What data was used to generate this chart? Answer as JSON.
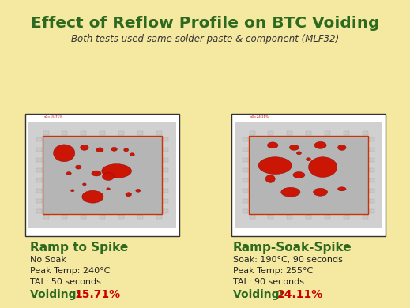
{
  "title": "Effect of Reflow Profile on BTC Voiding",
  "subtitle": "Both tests used same solder paste & component (MLF32)",
  "title_color": "#2d6a1f",
  "subtitle_color": "#333333",
  "background_color": "#f5e8a0",
  "left_heading": "Ramp to Spike",
  "left_details": [
    "No Soak",
    "Peak Temp: 240°C",
    "TAL: 50 seconds"
  ],
  "left_voiding_label": "Voiding: ",
  "left_voiding_value": "15.71%",
  "right_heading": "Ramp-Soak-Spike",
  "right_details": [
    "Soak: 190°C, 90 seconds",
    "Peak Temp: 255°C",
    "TAL: 90 seconds"
  ],
  "right_voiding_label": "Voiding: ",
  "right_voiding_value": "24.11%",
  "heading_color": "#2d6a1f",
  "detail_color": "#222222",
  "voiding_label_color": "#2d6a1f",
  "voiding_value_color": "#cc0000",
  "void_color": "#cc1100",
  "pcb_bg": "#b5b5b5",
  "pcb_outer_bg": "#d0d0d0",
  "border_color": "#cc3300",
  "frame_color": "#333333",
  "pad_color": "#c8c8c8"
}
